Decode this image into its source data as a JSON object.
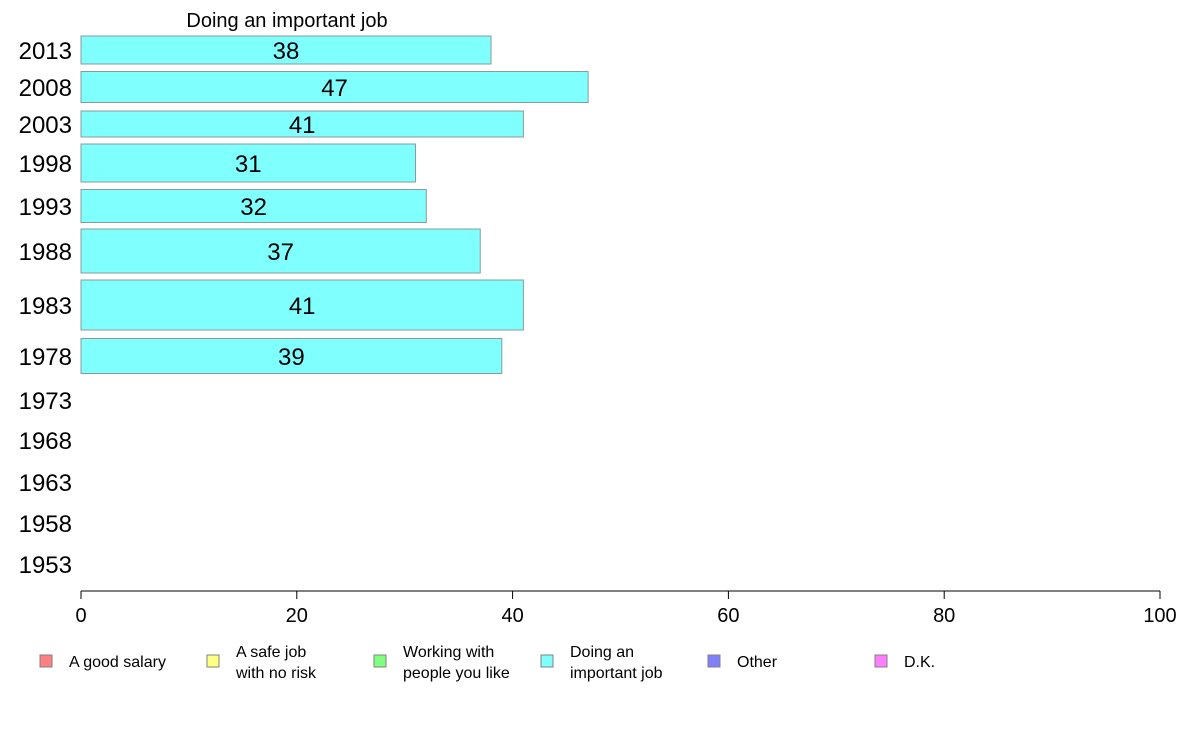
{
  "chart_data": {
    "type": "bar",
    "orientation": "horizontal",
    "title": "Doing an important job",
    "categories": [
      "2013",
      "2008",
      "2003",
      "1998",
      "1993",
      "1988",
      "1983",
      "1978",
      "1973",
      "1968",
      "1963",
      "1958",
      "1953"
    ],
    "series": [
      {
        "name": "Doing an important job",
        "color": "#80ffff",
        "values": [
          38,
          47,
          41,
          31,
          32,
          37,
          41,
          39,
          null,
          null,
          null,
          null,
          null
        ],
        "value_labels": [
          "38",
          "47",
          "41",
          "31",
          "32",
          "37",
          "41",
          "39",
          "",
          "",
          "",
          "",
          ""
        ]
      }
    ],
    "xlim": [
      0,
      100
    ],
    "xticks": [
      0,
      20,
      40,
      60,
      80,
      100
    ],
    "xtick_labels": [
      "0",
      "20",
      "40",
      "60",
      "80",
      "100"
    ],
    "grid": false,
    "legend_position": "bottom",
    "legend": [
      {
        "lines": [
          "A good salary"
        ],
        "color": "#ff8080"
      },
      {
        "lines": [
          "A safe job",
          "with no risk"
        ],
        "color": "#ffff80"
      },
      {
        "lines": [
          "Working with",
          "people you like"
        ],
        "color": "#80ff80"
      },
      {
        "lines": [
          "Doing an",
          "important job"
        ],
        "color": "#80ffff"
      },
      {
        "lines": [
          "Other"
        ],
        "color": "#8080ff"
      },
      {
        "lines": [
          "D.K."
        ],
        "color": "#ff80ff"
      }
    ]
  }
}
